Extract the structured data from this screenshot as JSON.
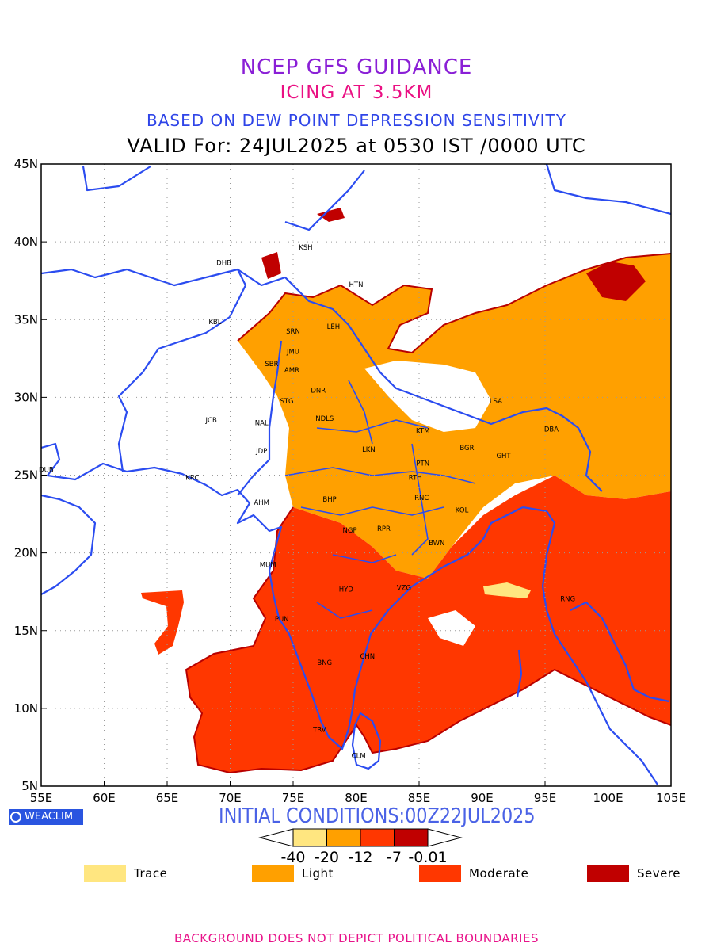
{
  "titles": {
    "line1": "NCEP GFS GUIDANCE",
    "line2": "ICING AT 3.5KM",
    "line3": "BASED ON DEW POINT DEPRESSION SENSITIVITY",
    "line4": "VALID For: 24JUL2025 at 0530 IST /0000 UTC"
  },
  "map": {
    "lon_range": [
      55,
      105
    ],
    "lat_range": [
      5,
      45
    ],
    "lon_ticks": [
      "55E",
      "60E",
      "65E",
      "70E",
      "75E",
      "80E",
      "85E",
      "90E",
      "95E",
      "100E",
      "105E"
    ],
    "lat_ticks": [
      "5N",
      "10N",
      "15N",
      "20N",
      "25N",
      "30N",
      "35N",
      "40N",
      "45N"
    ],
    "grid": "dotted",
    "colors": {
      "coast": "#2b4cf0",
      "trace": "#ffe680",
      "light": "#ffa000",
      "moderate": "#ff3700",
      "severe": "#c00000",
      "contour": "#b80000"
    },
    "stations": [
      {
        "code": "KSH",
        "lon": 76.0,
        "lat": 39.5
      },
      {
        "code": "DHB",
        "lon": 69.5,
        "lat": 38.5
      },
      {
        "code": "HTN",
        "lon": 80.0,
        "lat": 37.1
      },
      {
        "code": "KBL",
        "lon": 68.8,
        "lat": 34.7
      },
      {
        "code": "SRN",
        "lon": 75.0,
        "lat": 34.1
      },
      {
        "code": "LEH",
        "lon": 78.2,
        "lat": 34.4
      },
      {
        "code": "JMU",
        "lon": 75.0,
        "lat": 32.8
      },
      {
        "code": "SBR",
        "lon": 73.3,
        "lat": 32.0
      },
      {
        "code": "AMR",
        "lon": 74.9,
        "lat": 31.6
      },
      {
        "code": "DNR",
        "lon": 77.0,
        "lat": 30.3
      },
      {
        "code": "STG",
        "lon": 74.5,
        "lat": 29.6
      },
      {
        "code": "LSA",
        "lon": 91.1,
        "lat": 29.6
      },
      {
        "code": "JCB",
        "lon": 68.5,
        "lat": 28.4
      },
      {
        "code": "NAL",
        "lon": 72.5,
        "lat": 28.2
      },
      {
        "code": "NDLS",
        "lon": 77.5,
        "lat": 28.5
      },
      {
        "code": "KTM",
        "lon": 85.3,
        "lat": 27.7
      },
      {
        "code": "DBA",
        "lon": 95.5,
        "lat": 27.8
      },
      {
        "code": "GHT",
        "lon": 91.7,
        "lat": 26.1
      },
      {
        "code": "BGR",
        "lon": 88.8,
        "lat": 26.6
      },
      {
        "code": "JDP",
        "lon": 72.5,
        "lat": 26.4
      },
      {
        "code": "LKN",
        "lon": 81.0,
        "lat": 26.5
      },
      {
        "code": "PTN",
        "lon": 85.3,
        "lat": 25.6
      },
      {
        "code": "DUB",
        "lon": 55.4,
        "lat": 25.2
      },
      {
        "code": "KRC",
        "lon": 67.0,
        "lat": 24.7
      },
      {
        "code": "RTH",
        "lon": 84.7,
        "lat": 24.7
      },
      {
        "code": "AHM",
        "lon": 72.5,
        "lat": 23.1
      },
      {
        "code": "BHP",
        "lon": 77.9,
        "lat": 23.3
      },
      {
        "code": "RNC",
        "lon": 85.2,
        "lat": 23.4
      },
      {
        "code": "KOL",
        "lon": 88.4,
        "lat": 22.6
      },
      {
        "code": "NGP",
        "lon": 79.5,
        "lat": 21.3
      },
      {
        "code": "RPR",
        "lon": 82.2,
        "lat": 21.4
      },
      {
        "code": "BWN",
        "lon": 86.4,
        "lat": 20.5
      },
      {
        "code": "MUM",
        "lon": 73.0,
        "lat": 19.1
      },
      {
        "code": "HYD",
        "lon": 79.2,
        "lat": 17.5
      },
      {
        "code": "VZG",
        "lon": 83.8,
        "lat": 17.6
      },
      {
        "code": "RNG",
        "lon": 96.8,
        "lat": 16.9
      },
      {
        "code": "PUN",
        "lon": 74.1,
        "lat": 15.6
      },
      {
        "code": "CHN",
        "lon": 80.9,
        "lat": 13.2
      },
      {
        "code": "BNG",
        "lon": 77.5,
        "lat": 12.8
      },
      {
        "code": "TRV",
        "lon": 77.1,
        "lat": 8.5
      },
      {
        "code": "CLM",
        "lon": 80.2,
        "lat": 6.8
      }
    ]
  },
  "badge": {
    "text": "WEACLIM",
    "icon": "weaclim-logo-icon"
  },
  "initial_conditions": "INITIAL CONDITIONS:00Z22JUL2025",
  "colorbar": {
    "boundaries": [
      "-40",
      "-20",
      "-12",
      "-7",
      "-0.01"
    ],
    "colors": [
      "#ffe680",
      "#ffa000",
      "#ff3700",
      "#c00000"
    ]
  },
  "legend": [
    {
      "label": "Trace",
      "color": "#ffe680"
    },
    {
      "label": "Light",
      "color": "#ffa000"
    },
    {
      "label": "Moderate",
      "color": "#ff3700"
    },
    {
      "label": "Severe",
      "color": "#c00000"
    }
  ],
  "footer": "BACKGROUND DOES NOT DEPICT POLITICAL BOUNDARIES"
}
